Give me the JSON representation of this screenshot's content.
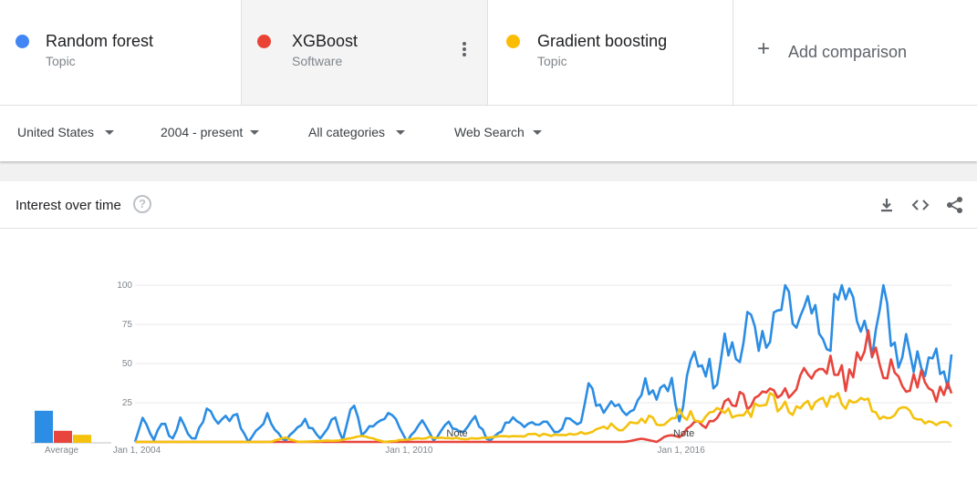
{
  "terms": [
    {
      "name": "Random forest",
      "type": "Topic",
      "color": "#4285f4"
    },
    {
      "name": "XGBoost",
      "type": "Software",
      "color": "#ea4335"
    },
    {
      "name": "Gradient boosting",
      "type": "Topic",
      "color": "#fbbc04"
    }
  ],
  "add_comparison": {
    "label": "Add comparison",
    "icon": "plus-icon"
  },
  "filters": {
    "region": "United States",
    "time": "2004 - present",
    "category": "All categories",
    "property": "Web Search"
  },
  "card": {
    "title": "Interest over time",
    "help_glyph": "?",
    "icons": [
      "download-icon",
      "embed-icon",
      "share-icon"
    ]
  },
  "chart_data": {
    "type": "line",
    "x_start": "Jan 1, 2004",
    "x_end": "present",
    "x_ticks": [
      "Jan 1, 2004",
      "Jan 1, 2010",
      "Jan 1, 2016"
    ],
    "y_ticks": [
      25,
      50,
      75,
      100
    ],
    "ylim": [
      0,
      100
    ],
    "grid": true,
    "notes": [
      {
        "date": "2011-01",
        "label": "Note"
      },
      {
        "date": "2016-01",
        "label": "Note"
      }
    ],
    "averages": {
      "label": "Average",
      "values": [
        32,
        12,
        8
      ]
    },
    "series": [
      {
        "name": "Random forest",
        "color": "#2b8de3",
        "knots": [
          [
            2004.0,
            0
          ],
          [
            2004.2,
            18
          ],
          [
            2004.4,
            0
          ],
          [
            2004.6,
            15
          ],
          [
            2004.8,
            0
          ],
          [
            2005.0,
            14
          ],
          [
            2005.3,
            0
          ],
          [
            2005.6,
            22
          ],
          [
            2005.9,
            12
          ],
          [
            2006.2,
            18
          ],
          [
            2006.5,
            0
          ],
          [
            2006.9,
            16
          ],
          [
            2007.3,
            0
          ],
          [
            2007.7,
            14
          ],
          [
            2008.1,
            2
          ],
          [
            2008.4,
            16
          ],
          [
            2008.6,
            0
          ],
          [
            2008.8,
            33
          ],
          [
            2009.0,
            4
          ],
          [
            2009.3,
            12
          ],
          [
            2009.7,
            18
          ],
          [
            2010.0,
            0
          ],
          [
            2010.3,
            14
          ],
          [
            2010.6,
            0
          ],
          [
            2010.9,
            13
          ],
          [
            2011.2,
            6
          ],
          [
            2011.5,
            15
          ],
          [
            2011.8,
            0
          ],
          [
            2012.3,
            14
          ],
          [
            2012.7,
            10
          ],
          [
            2013.0,
            15
          ],
          [
            2013.3,
            4
          ],
          [
            2013.6,
            18
          ],
          [
            2013.8,
            12
          ],
          [
            2014.0,
            33
          ],
          [
            2014.3,
            22
          ],
          [
            2014.6,
            28
          ],
          [
            2014.9,
            16
          ],
          [
            2015.2,
            40
          ],
          [
            2015.5,
            32
          ],
          [
            2015.8,
            42
          ],
          [
            2016.0,
            12
          ],
          [
            2016.3,
            55
          ],
          [
            2016.6,
            50
          ],
          [
            2016.8,
            38
          ],
          [
            2017.0,
            75
          ],
          [
            2017.3,
            50
          ],
          [
            2017.6,
            82
          ],
          [
            2017.9,
            55
          ],
          [
            2018.3,
            90
          ],
          [
            2018.6,
            72
          ],
          [
            2018.9,
            82
          ],
          [
            2019.2,
            55
          ],
          [
            2019.6,
            100
          ],
          [
            2019.9,
            78
          ],
          [
            2020.2,
            60
          ],
          [
            2020.5,
            95
          ],
          [
            2020.8,
            52
          ],
          [
            2021.0,
            68
          ],
          [
            2021.3,
            45
          ],
          [
            2021.6,
            62
          ],
          [
            2021.9,
            35
          ],
          [
            2022.0,
            48
          ]
        ]
      },
      {
        "name": "XGBoost",
        "color": "#e8453c",
        "knots": [
          [
            2004.0,
            0
          ],
          [
            2014.8,
            0
          ],
          [
            2015.2,
            2
          ],
          [
            2015.5,
            0
          ],
          [
            2015.8,
            5
          ],
          [
            2016.0,
            3
          ],
          [
            2016.3,
            12
          ],
          [
            2016.6,
            10
          ],
          [
            2016.9,
            20
          ],
          [
            2017.3,
            28
          ],
          [
            2017.6,
            22
          ],
          [
            2017.9,
            38
          ],
          [
            2018.2,
            28
          ],
          [
            2018.5,
            35
          ],
          [
            2018.8,
            44
          ],
          [
            2019.1,
            40
          ],
          [
            2019.4,
            50
          ],
          [
            2019.7,
            38
          ],
          [
            2020.0,
            55
          ],
          [
            2020.2,
            62
          ],
          [
            2020.4,
            45
          ],
          [
            2020.7,
            50
          ],
          [
            2021.0,
            38
          ],
          [
            2021.3,
            44
          ],
          [
            2021.6,
            30
          ],
          [
            2021.9,
            32
          ],
          [
            2022.0,
            30
          ]
        ]
      },
      {
        "name": "Gradient boosting",
        "color": "#f4c20d",
        "knots": [
          [
            2004.0,
            0
          ],
          [
            2007.0,
            0
          ],
          [
            2007.3,
            3
          ],
          [
            2007.6,
            0
          ],
          [
            2008.5,
            1
          ],
          [
            2009.0,
            4
          ],
          [
            2009.5,
            0
          ],
          [
            2010.5,
            3
          ],
          [
            2011.5,
            2
          ],
          [
            2012.5,
            4
          ],
          [
            2013.5,
            5
          ],
          [
            2014.0,
            6
          ],
          [
            2014.5,
            10
          ],
          [
            2014.8,
            8
          ],
          [
            2015.0,
            14
          ],
          [
            2015.3,
            15
          ],
          [
            2015.6,
            10
          ],
          [
            2016.0,
            18
          ],
          [
            2016.5,
            15
          ],
          [
            2017.0,
            20
          ],
          [
            2017.5,
            18
          ],
          [
            2018.0,
            26
          ],
          [
            2018.5,
            20
          ],
          [
            2019.0,
            24
          ],
          [
            2019.5,
            28
          ],
          [
            2019.8,
            22
          ],
          [
            2020.1,
            25
          ],
          [
            2020.4,
            18
          ],
          [
            2020.7,
            15
          ],
          [
            2021.0,
            22
          ],
          [
            2021.3,
            14
          ],
          [
            2021.6,
            12
          ],
          [
            2021.9,
            11
          ],
          [
            2022.0,
            12
          ]
        ]
      }
    ]
  }
}
